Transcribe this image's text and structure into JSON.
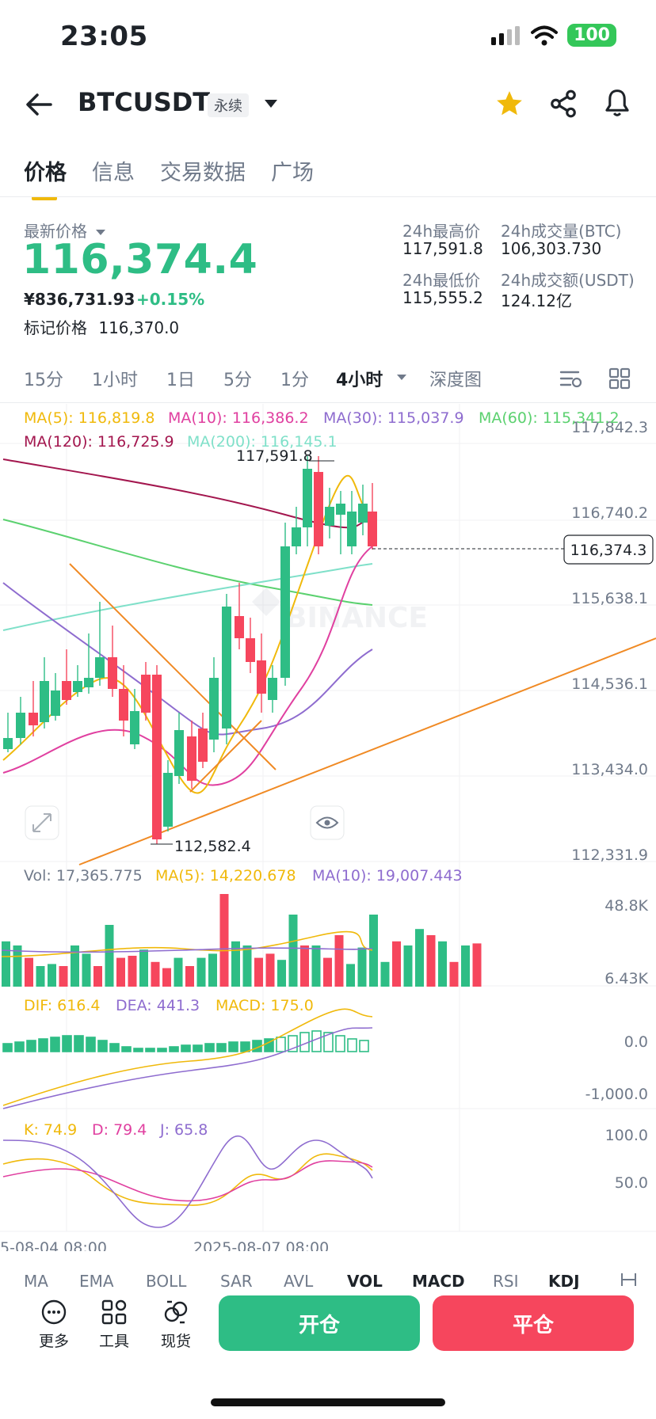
{
  "status_bar": {
    "time": "23:05",
    "battery": "100"
  },
  "header": {
    "symbol": "BTCUSDT",
    "contract_type": "永续"
  },
  "tabs": [
    {
      "label": "价格",
      "active": true
    },
    {
      "label": "信息",
      "active": false
    },
    {
      "label": "交易数据",
      "active": false
    },
    {
      "label": "广场",
      "active": false
    }
  ],
  "price": {
    "last_label": "最新价格",
    "last_price": "116,374.4",
    "cny_price": "¥836,731.93",
    "change_pct": "+0.15%",
    "mark_label": "标记价格",
    "mark_price": "116,370.0"
  },
  "stats": {
    "high_label": "24h最高价",
    "high_value": "117,591.8",
    "vol_btc_label": "24h成交量(BTC)",
    "vol_btc_value": "106,303.730",
    "low_label": "24h最低价",
    "low_value": "115,555.2",
    "vol_usdt_label": "24h成交额(USDT)",
    "vol_usdt_value": "124.12亿"
  },
  "intervals": [
    "15分",
    "1小时",
    "1日",
    "5分",
    "1分",
    "4小时",
    "深度图"
  ],
  "active_interval": "4小时",
  "chart": {
    "ma_legend": {
      "ma5": "MA(5): 116,819.8",
      "ma10": "MA(10): 116,386.2",
      "ma30": "MA(30): 115,037.9",
      "ma60": "MA(60): 115,341.2",
      "ma120": "MA(120): 116,725.9",
      "ma200": "MA(200): 116,145.1"
    },
    "price_axis": [
      "117,842.3",
      "116,740.2",
      "115,638.1",
      "114,536.1",
      "113,434.0",
      "112,331.9"
    ],
    "current_price_tag": "116,374.3",
    "high_marker": "117,591.8",
    "low_marker": "112,582.4",
    "watermark": "BINANCE",
    "volume_legend": {
      "vol": "Vol: 17,365.775",
      "ma5": "MA(5): 14,220.678",
      "ma10": "MA(10): 19,007.443"
    },
    "volume_axis": [
      "48.8K",
      "6.43K"
    ],
    "macd_legend": {
      "dif": "DIF: 616.4",
      "dea": "DEA: 441.3",
      "macd": "MACD: 175.0"
    },
    "macd_axis": [
      "0.0",
      "-1,000.0"
    ],
    "kdj_legend": {
      "k": "K: 74.9",
      "d": "D: 79.4",
      "j": "J: 65.8"
    },
    "kdj_axis": [
      "100.0",
      "50.0"
    ],
    "time_axis": [
      "5-08-04 08:00",
      "2025-08-07 08:00"
    ],
    "colors": {
      "up": "#2ebd85",
      "down": "#f6465d",
      "ma5": "#f0b90b",
      "ma10": "#e040a0",
      "ma30": "#8e6ccf",
      "ma60": "#5bd16f",
      "ma120": "#a3164e",
      "ma200": "#7fe0c9",
      "trend": "#f08a24"
    }
  },
  "indicator_tabs": [
    "MA",
    "EMA",
    "BOLL",
    "SAR",
    "AVL",
    "VOL",
    "MACD",
    "RSI",
    "KDJ"
  ],
  "bottom_bar": {
    "more": "更多",
    "tools": "工具",
    "spot": "现货",
    "open": "开仓",
    "close": "平仓"
  }
}
